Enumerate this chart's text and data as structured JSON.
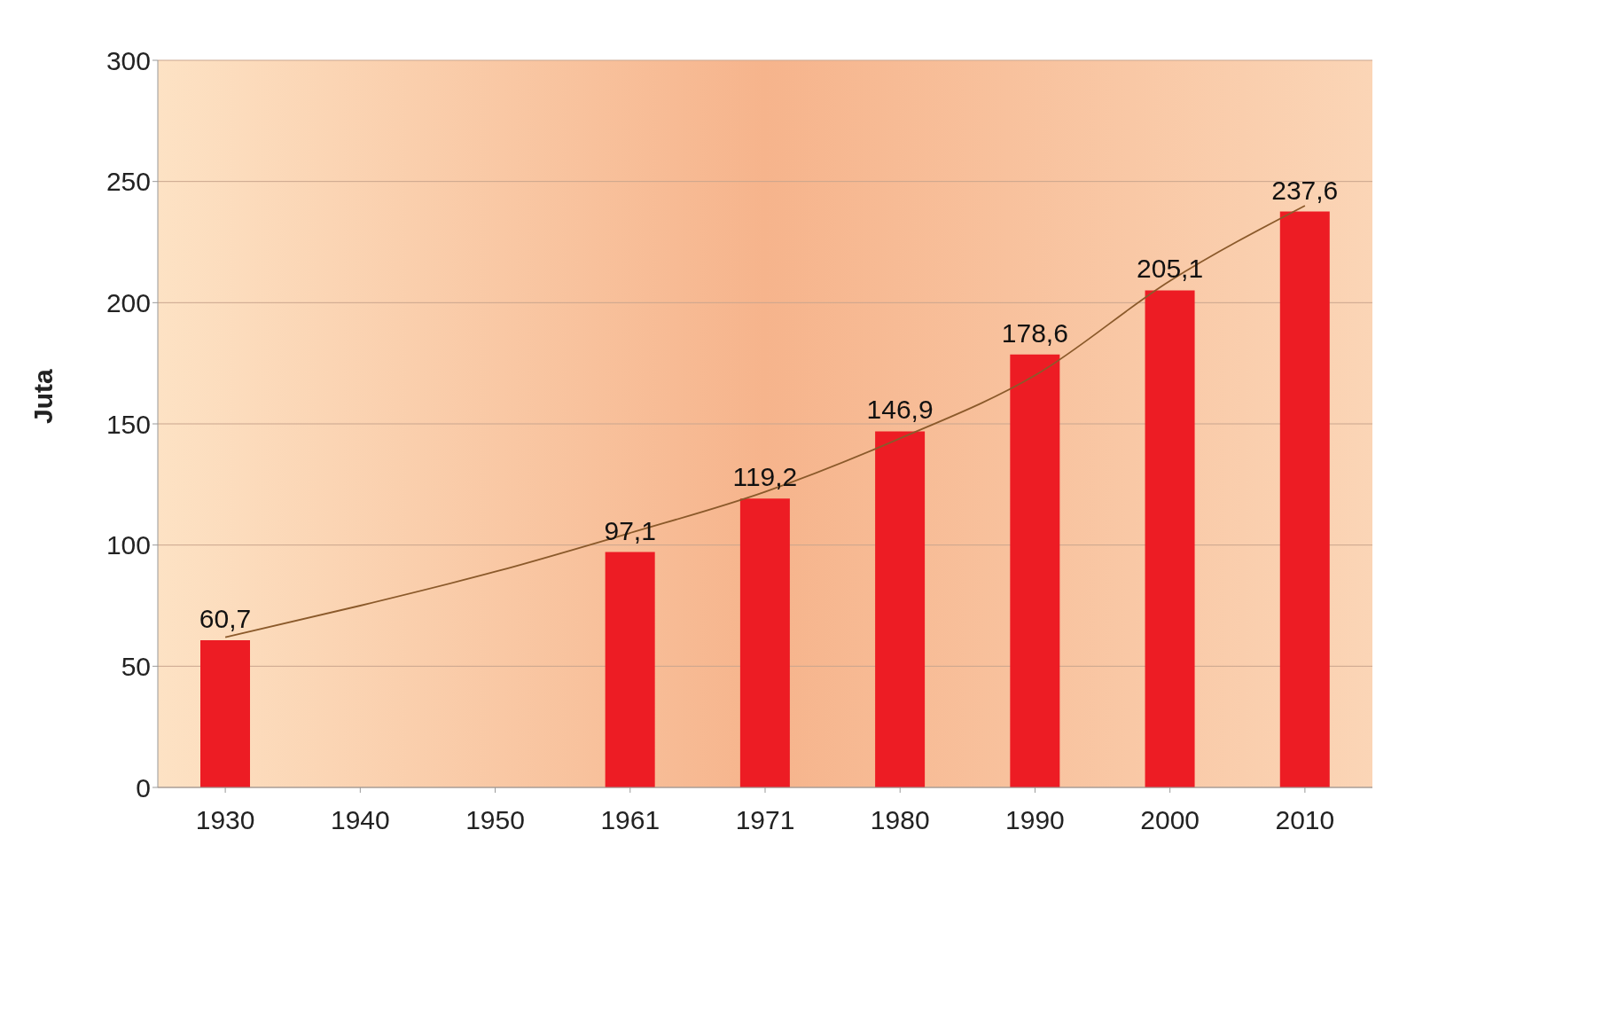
{
  "chart_data": {
    "type": "bar",
    "ylabel": "Juta",
    "categories": [
      "1930",
      "1940",
      "1950",
      "1961",
      "1971",
      "1980",
      "1990",
      "2000",
      "2010"
    ],
    "series": [
      {
        "color": "#ed1c24",
        "values": [
          60.7,
          null,
          null,
          97.1,
          119.2,
          146.9,
          178.6,
          205.1,
          237.6
        ],
        "value_labels": [
          "60,7",
          null,
          null,
          "97,1",
          "119,2",
          "146,9",
          "178,6",
          "205,1",
          "237,6"
        ]
      },
      {
        "type": "line",
        "color": "#8b5a2b",
        "values": [
          62,
          75,
          89,
          105,
          122,
          144,
          170,
          209,
          240
        ]
      }
    ],
    "ylim": [
      0,
      300
    ],
    "yticks": [
      0,
      50,
      100,
      150,
      200,
      250,
      300
    ],
    "grid": "y",
    "legend": false,
    "marker": "none"
  }
}
